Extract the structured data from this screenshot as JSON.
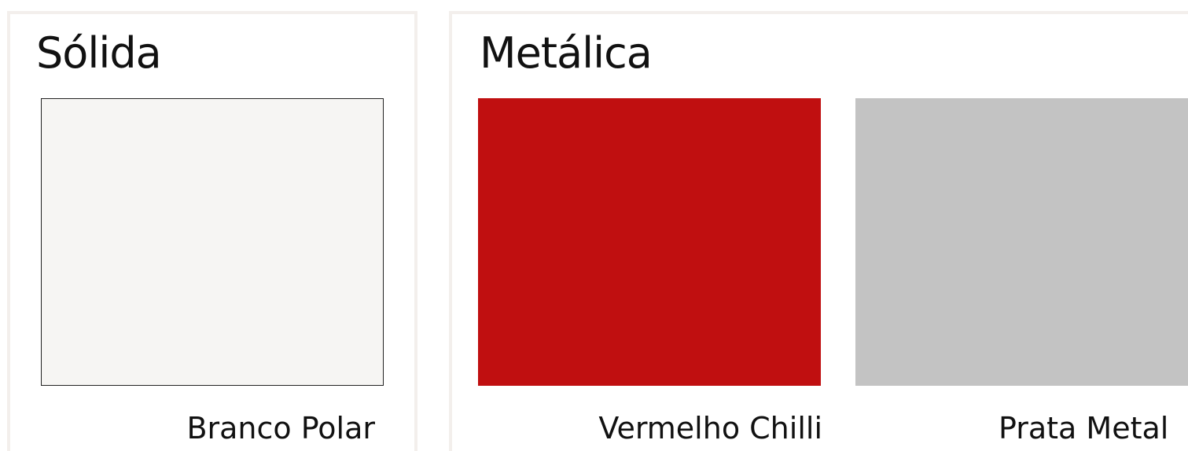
{
  "sections": [
    {
      "title": "Sólida",
      "colors": [
        {
          "label": "Branco Polar",
          "swatch": "#f6f5f3"
        }
      ]
    },
    {
      "title": "Metálica",
      "colors": [
        {
          "label": "Vermelho Chilli",
          "swatch": "#c00f10"
        },
        {
          "label": "Prata Metal",
          "swatch": "#c3c3c3"
        }
      ]
    }
  ],
  "colors": {
    "panel_border": "#f3efec",
    "text": "#111111"
  }
}
